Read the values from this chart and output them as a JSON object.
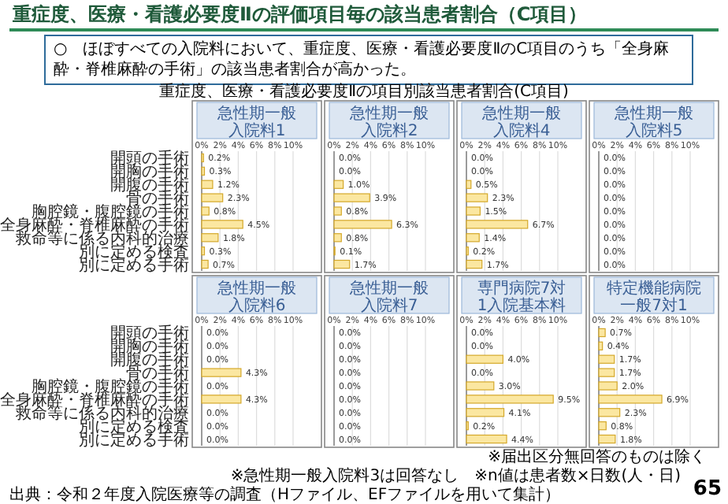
{
  "chart_data": [
    {
      "type": "other",
      "title": "重症度、医療・看護必要度Ⅱの評価項目毎の該当患者割合（C項目）",
      "annotations": [
        "○　ほぼすべての入院料において、重症度、医療・看護必要度ⅡのC項目のうち「全身麻酔・脊椎麻酔の手術」の該当患者割合が高かった。",
        "重症度、医療・看護必要度Ⅱの項目別該当患者割合(C項目)",
        "※届出区分無回答のものは除く",
        "※急性期一般入院料3は回答なし　※n値は患者数×日数(人・日)",
        "出典：令和２年度入院医療等の調査（Hファイル、EFファイルを用いて集計）",
        "65"
      ]
    },
    {
      "type": "bar",
      "orientation": "horizontal",
      "title": "急性期一般入院料1",
      "categories": [
        "開頭の手術",
        "開胸の手術",
        "開腹の手術",
        "骨の手術",
        "胸腔鏡・腹腔鏡の手術",
        "全身麻酔・脊椎麻酔の手術",
        "救命等に係る内科的治療",
        "別に定める検査",
        "別に定める手術"
      ],
      "values": [
        0.2,
        0.3,
        1.2,
        2.3,
        0.8,
        4.5,
        1.8,
        0.3,
        0.7
      ],
      "value_labels": [
        "0.2%",
        "0.3%",
        "1.2%",
        "2.3%",
        "0.8%",
        "4.5%",
        "1.8%",
        "0.3%",
        "0.7%"
      ],
      "color": "#fbe7a1",
      "xlim": [
        0,
        10
      ],
      "xticks": [
        {
          "value": 0,
          "label": "0%"
        },
        {
          "value": 2,
          "label": "2%"
        },
        {
          "value": 4,
          "label": "4%"
        },
        {
          "value": 6,
          "label": "6%"
        },
        {
          "value": 8,
          "label": "8%"
        },
        {
          "value": 10,
          "label": "10%"
        }
      ],
      "grid": "x"
    },
    {
      "type": "bar",
      "orientation": "horizontal",
      "title": "急性期一般入院料2",
      "categories": [
        "開頭の手術",
        "開胸の手術",
        "開腹の手術",
        "骨の手術",
        "胸腔鏡・腹腔鏡の手術",
        "全身麻酔・脊椎麻酔の手術",
        "救命等に係る内科的治療",
        "別に定める検査",
        "別に定める手術"
      ],
      "values": [
        0.0,
        0.0,
        1.0,
        3.9,
        0.8,
        6.3,
        0.8,
        0.1,
        1.7
      ],
      "value_labels": [
        "0.0%",
        "0.0%",
        "1.0%",
        "3.9%",
        "0.8%",
        "6.3%",
        "0.8%",
        "0.1%",
        "1.7%"
      ],
      "color": "#fbe7a1",
      "xlim": [
        0,
        10
      ],
      "xticks": [
        {
          "value": 0,
          "label": "0%"
        },
        {
          "value": 2,
          "label": "2%"
        },
        {
          "value": 4,
          "label": "4%"
        },
        {
          "value": 6,
          "label": "6%"
        },
        {
          "value": 8,
          "label": "8%"
        },
        {
          "value": 10,
          "label": "10%"
        }
      ],
      "grid": "x",
      "tick_labels": "x"
    },
    {
      "type": "bar",
      "orientation": "horizontal",
      "title": "急性期一般入院料4",
      "categories": [
        "開頭の手術",
        "開胸の手術",
        "開腹の手術",
        "骨の手術",
        "胸腔鏡・腹腔鏡の手術",
        "全身麻酔・脊椎麻酔の手術",
        "救命等に係る内科的治療",
        "別に定める検査",
        "別に定める手術"
      ],
      "values": [
        0.0,
        0.0,
        0.5,
        2.3,
        1.5,
        6.7,
        1.4,
        0.2,
        1.7
      ],
      "value_labels": [
        "0.0%",
        "0.0%",
        "0.5%",
        "2.3%",
        "1.5%",
        "6.7%",
        "1.4%",
        "0.2%",
        "1.7%"
      ],
      "color": "#fbe7a1",
      "xlim": [
        0,
        10
      ],
      "xticks": [
        {
          "value": 0,
          "label": "0%"
        },
        {
          "value": 2,
          "label": "2%"
        },
        {
          "value": 4,
          "label": "4%"
        },
        {
          "value": 6,
          "label": "6%"
        },
        {
          "value": 8,
          "label": "8%"
        },
        {
          "value": 10,
          "label": "10%"
        }
      ],
      "grid": "x",
      "tick_labels": "x"
    },
    {
      "type": "bar",
      "orientation": "horizontal",
      "title": "急性期一般入院料5",
      "categories": [
        "開頭の手術",
        "開胸の手術",
        "開腹の手術",
        "骨の手術",
        "胸腔鏡・腹腔鏡の手術",
        "全身麻酔・脊椎麻酔の手術",
        "救命等に係る内科的治療",
        "別に定める検査",
        "別に定める手術"
      ],
      "values": [
        0.0,
        0.0,
        0.0,
        0.0,
        0.0,
        0.0,
        0.0,
        0.0,
        0.0
      ],
      "value_labels": [
        "0.0%",
        "0.0%",
        "0.0%",
        "0.0%",
        "0.0%",
        "0.0%",
        "0.0%",
        "0.0%",
        "0.0%"
      ],
      "color": "#fbe7a1",
      "xlim": [
        0,
        10
      ],
      "xticks": [
        {
          "value": 0,
          "label": "0%"
        },
        {
          "value": 2,
          "label": "2%"
        },
        {
          "value": 4,
          "label": "4%"
        },
        {
          "value": 6,
          "label": "6%"
        },
        {
          "value": 8,
          "label": "8%"
        },
        {
          "value": 10,
          "label": "10%"
        }
      ],
      "grid": "x",
      "tick_labels": "x"
    },
    {
      "type": "bar",
      "orientation": "horizontal",
      "title": "急性期一般入院料6",
      "categories": [
        "開頭の手術",
        "開胸の手術",
        "開腹の手術",
        "骨の手術",
        "胸腔鏡・腹腔鏡の手術",
        "全身麻酔・脊椎麻酔の手術",
        "救命等に係る内科的治療",
        "別に定める検査",
        "別に定める手術"
      ],
      "values": [
        0.0,
        0.0,
        0.0,
        4.3,
        0.0,
        4.3,
        0.0,
        0.0,
        0.0
      ],
      "value_labels": [
        "0.0%",
        "0.0%",
        "0.0%",
        "4.3%",
        "0.0%",
        "4.3%",
        "0.0%",
        "0.0%",
        "0.0%"
      ],
      "color": "#fbe7a1",
      "xlim": [
        0,
        10
      ],
      "xticks": [
        {
          "value": 0,
          "label": "0%"
        },
        {
          "value": 2,
          "label": "2%"
        },
        {
          "value": 4,
          "label": "4%"
        },
        {
          "value": 6,
          "label": "6%"
        },
        {
          "value": 8,
          "label": "8%"
        },
        {
          "value": 10,
          "label": "10%"
        }
      ],
      "grid": "x"
    },
    {
      "type": "bar",
      "orientation": "horizontal",
      "title": "急性期一般入院料7",
      "categories": [
        "開頭の手術",
        "開胸の手術",
        "開腹の手術",
        "骨の手術",
        "胸腔鏡・腹腔鏡の手術",
        "全身麻酔・脊椎麻酔の手術",
        "救命等に係る内科的治療",
        "別に定める検査",
        "別に定める手術"
      ],
      "values": [
        0.0,
        0.0,
        0.0,
        0.0,
        0.0,
        0.0,
        0.0,
        0.0,
        0.0
      ],
      "value_labels": [
        "0.0%",
        "0.0%",
        "0.0%",
        "0.0%",
        "0.0%",
        "0.0%",
        "0.0%",
        "0.0%",
        "0.0%"
      ],
      "color": "#fbe7a1",
      "xlim": [
        0,
        10
      ],
      "xticks": [
        {
          "value": 0,
          "label": "0%"
        },
        {
          "value": 2,
          "label": "2%"
        },
        {
          "value": 4,
          "label": "4%"
        },
        {
          "value": 6,
          "label": "6%"
        },
        {
          "value": 8,
          "label": "8%"
        },
        {
          "value": 10,
          "label": "10%"
        }
      ],
      "grid": "x",
      "tick_labels": "x"
    },
    {
      "type": "bar",
      "orientation": "horizontal",
      "title": "専門病院7対1入院基本料",
      "categories": [
        "開頭の手術",
        "開胸の手術",
        "開腹の手術",
        "骨の手術",
        "胸腔鏡・腹腔鏡の手術",
        "全身麻酔・脊椎麻酔の手術",
        "救命等に係る内科的治療",
        "別に定める検査",
        "別に定める手術"
      ],
      "values": [
        0.0,
        0.0,
        4.0,
        0.0,
        3.0,
        9.5,
        4.1,
        0.2,
        4.4
      ],
      "value_labels": [
        "0.0%",
        "0.0%",
        "4.0%",
        "0.0%",
        "3.0%",
        "9.5%",
        "4.1%",
        "0.2%",
        "4.4%"
      ],
      "color": "#fbe7a1",
      "xlim": [
        0,
        10
      ],
      "xticks": [
        {
          "value": 0,
          "label": "0%"
        },
        {
          "value": 2,
          "label": "2%"
        },
        {
          "value": 4,
          "label": "4%"
        },
        {
          "value": 6,
          "label": "6%"
        },
        {
          "value": 8,
          "label": "8%"
        },
        {
          "value": 10,
          "label": "10%"
        }
      ],
      "grid": "x",
      "tick_labels": "x"
    },
    {
      "type": "bar",
      "orientation": "horizontal",
      "title": "特定機能病院一般7対1",
      "categories": [
        "開頭の手術",
        "開胸の手術",
        "開腹の手術",
        "骨の手術",
        "胸腔鏡・腹腔鏡の手術",
        "全身麻酔・脊椎麻酔の手術",
        "救命等に係る内科的治療",
        "別に定める検査",
        "別に定める手術"
      ],
      "values": [
        0.7,
        0.4,
        1.7,
        1.7,
        2.0,
        6.9,
        2.3,
        0.8,
        1.8
      ],
      "value_labels": [
        "0.7%",
        "0.4%",
        "1.7%",
        "1.7%",
        "2.0%",
        "6.9%",
        "2.3%",
        "0.8%",
        "1.8%"
      ],
      "color": "#fbe7a1",
      "xlim": [
        0,
        10
      ],
      "xticks": [
        {
          "value": 0,
          "label": "0%"
        },
        {
          "value": 2,
          "label": "2%"
        },
        {
          "value": 4,
          "label": "4%"
        },
        {
          "value": 6,
          "label": "6%"
        },
        {
          "value": 8,
          "label": "8%"
        },
        {
          "value": 10,
          "label": "10%"
        }
      ],
      "grid": "x",
      "tick_labels": "x"
    }
  ]
}
